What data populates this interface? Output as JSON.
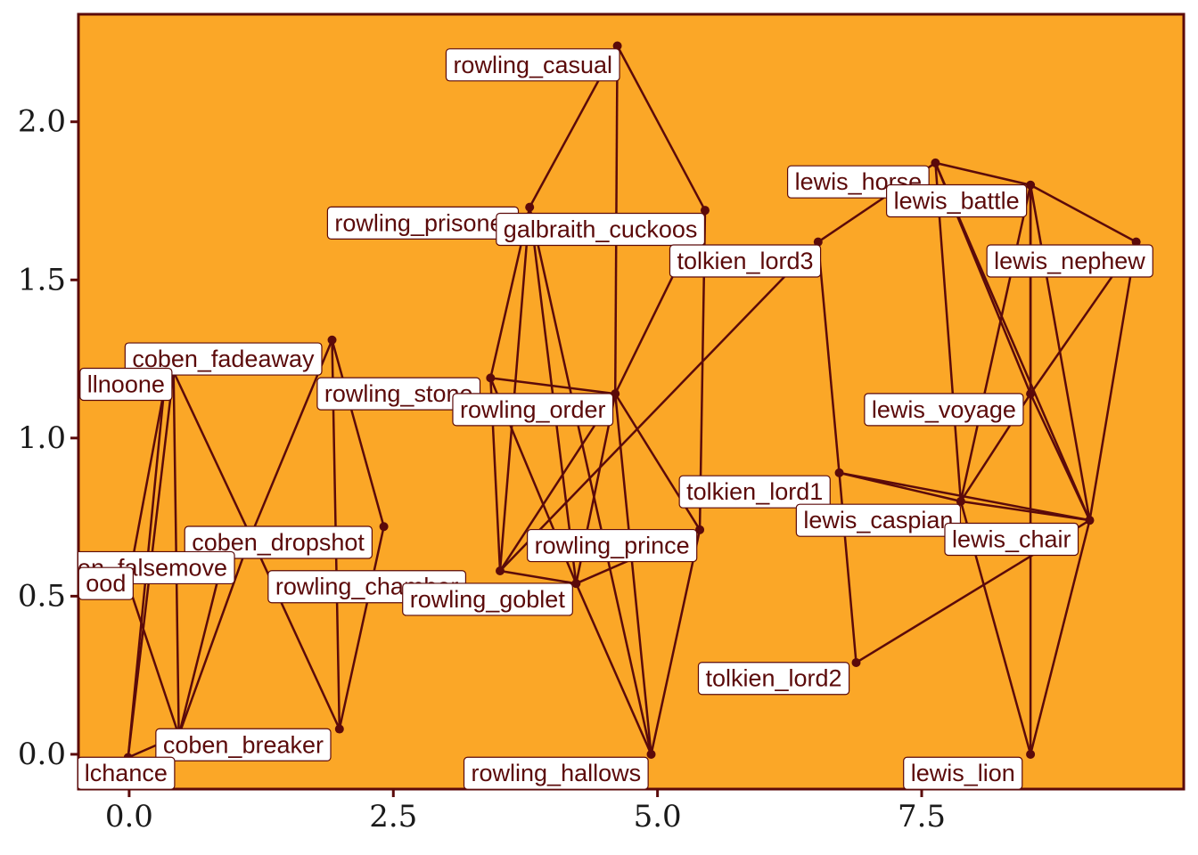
{
  "chart_data": {
    "type": "network",
    "title": "",
    "xlabel": "",
    "ylabel": "",
    "xlim": [
      -0.48,
      9.98
    ],
    "ylim": [
      -0.11,
      2.34
    ],
    "x_ticks": [
      0.0,
      2.5,
      5.0,
      7.5
    ],
    "x_tick_labels": [
      "0.0",
      "2.5",
      "5.0",
      "7.5"
    ],
    "y_ticks": [
      0.0,
      0.5,
      1.0,
      1.5,
      2.0
    ],
    "y_tick_labels": [
      "0.0",
      "0.5",
      "1.0",
      "1.5",
      "2.0"
    ],
    "colors": {
      "panel": "#FBA727",
      "ink": "#5B0A0A",
      "label_bg": "#FFFFFF"
    },
    "nodes": [
      {
        "id": "coben_fadeaway",
        "x": 0.42,
        "y": 1.21,
        "lx": 0.89,
        "ly": 1.25
      },
      {
        "id": "coben_nooone",
        "x": 0.33,
        "y": 1.15,
        "lx": -0.03,
        "ly": 1.17,
        "label": "llnoone"
      },
      {
        "id": "coben_dropshot",
        "x": 1.15,
        "y": 0.69,
        "lx": 1.41,
        "ly": 0.67
      },
      {
        "id": "coben_falsemove",
        "x": 0.86,
        "y": 0.58,
        "lx": 0.22,
        "ly": 0.59,
        "label": "en_falsemove"
      },
      {
        "id": "coben_wood",
        "x": -0.01,
        "y": 0.54,
        "lx": -0.22,
        "ly": 0.54,
        "label": "ood"
      },
      {
        "id": "coben_breaker",
        "x": 0.47,
        "y": 0.06,
        "lx": 1.08,
        "ly": 0.03
      },
      {
        "id": "coben_chance",
        "x": -0.01,
        "y": -0.01,
        "lx": -0.03,
        "ly": -0.06,
        "label": "lchance"
      },
      {
        "id": "rowling_stone",
        "x": 1.92,
        "y": 1.31,
        "lx": 2.55,
        "ly": 1.14
      },
      {
        "id": "rowling_chamber",
        "x": 2.41,
        "y": 0.72,
        "lx": 2.25,
        "ly": 0.53,
        "label": "rowling_chamber"
      },
      {
        "id": "rowling_goblet_a",
        "x": 1.99,
        "y": 0.08,
        "lx": null,
        "ly": null
      },
      {
        "id": "rowling_prisoner",
        "x": 3.79,
        "y": 1.73,
        "lx": 2.78,
        "ly": 1.68
      },
      {
        "id": "galbraith_cuckoos",
        "x": 5.45,
        "y": 1.72,
        "lx": 4.46,
        "ly": 1.66,
        "label": "galbraith_cuckoos"
      },
      {
        "id": "rowling_casual",
        "x": 4.62,
        "y": 2.24,
        "lx": 3.82,
        "ly": 2.18
      },
      {
        "id": "rowling_order",
        "x": 3.42,
        "y": 1.19,
        "lx": 3.82,
        "ly": 1.09
      },
      {
        "id": "rowling_hub",
        "x": 4.6,
        "y": 1.14,
        "lx": null,
        "ly": null
      },
      {
        "id": "rowling_goblet",
        "x": 3.51,
        "y": 0.58,
        "lx": 3.39,
        "ly": 0.49
      },
      {
        "id": "rowling_prince",
        "x": 4.23,
        "y": 0.54,
        "lx": 4.57,
        "ly": 0.66
      },
      {
        "id": "rowling_mid",
        "x": 5.4,
        "y": 0.71,
        "lx": null,
        "ly": null
      },
      {
        "id": "rowling_hallows",
        "x": 4.94,
        "y": 0.0,
        "lx": 4.04,
        "ly": -0.06
      },
      {
        "id": "tolkien_lord3",
        "x": 6.52,
        "y": 1.62,
        "lx": 5.83,
        "ly": 1.56
      },
      {
        "id": "tolkien_lord1",
        "x": 6.72,
        "y": 0.89,
        "lx": 5.92,
        "ly": 0.83
      },
      {
        "id": "tolkien_lord2",
        "x": 6.88,
        "y": 0.29,
        "lx": 6.1,
        "ly": 0.24
      },
      {
        "id": "lewis_horse",
        "x": 7.63,
        "y": 1.87,
        "lx": 6.9,
        "ly": 1.81
      },
      {
        "id": "lewis_battle",
        "x": 8.53,
        "y": 1.8,
        "lx": 7.83,
        "ly": 1.75
      },
      {
        "id": "lewis_nephew",
        "x": 9.53,
        "y": 1.62,
        "lx": 8.9,
        "ly": 1.56
      },
      {
        "id": "lewis_voyage",
        "x": 8.53,
        "y": 1.14,
        "lx": 7.71,
        "ly": 1.09
      },
      {
        "id": "lewis_caspian",
        "x": 7.87,
        "y": 0.8,
        "lx": 7.09,
        "ly": 0.74
      },
      {
        "id": "lewis_chair",
        "x": 9.09,
        "y": 0.74,
        "lx": 8.35,
        "ly": 0.68
      },
      {
        "id": "lewis_lion",
        "x": 8.53,
        "y": 0.0,
        "lx": 7.89,
        "ly": -0.06
      }
    ],
    "edges": [
      [
        "coben_nooone",
        "coben_wood"
      ],
      [
        "coben_nooone",
        "coben_chance"
      ],
      [
        "coben_fadeaway",
        "coben_breaker"
      ],
      [
        "coben_fadeaway",
        "coben_dropshot"
      ],
      [
        "coben_fadeaway",
        "coben_chance"
      ],
      [
        "coben_dropshot",
        "coben_breaker"
      ],
      [
        "coben_dropshot",
        "rowling_stone"
      ],
      [
        "coben_falsemove",
        "coben_breaker"
      ],
      [
        "coben_wood",
        "coben_breaker"
      ],
      [
        "coben_chance",
        "coben_breaker"
      ],
      [
        "rowling_stone",
        "rowling_chamber"
      ],
      [
        "rowling_stone",
        "rowling_goblet_a"
      ],
      [
        "rowling_chamber",
        "rowling_goblet_a"
      ],
      [
        "coben_dropshot",
        "rowling_goblet_a"
      ],
      [
        "rowling_casual",
        "rowling_prisoner"
      ],
      [
        "rowling_casual",
        "galbraith_cuckoos"
      ],
      [
        "rowling_casual",
        "rowling_hub"
      ],
      [
        "galbraith_cuckoos",
        "rowling_hub"
      ],
      [
        "rowling_prisoner",
        "rowling_order"
      ],
      [
        "rowling_prisoner",
        "rowling_goblet"
      ],
      [
        "rowling_prisoner",
        "rowling_prince"
      ],
      [
        "rowling_prisoner",
        "rowling_hallows"
      ],
      [
        "rowling_order",
        "rowling_hub"
      ],
      [
        "rowling_order",
        "rowling_goblet"
      ],
      [
        "rowling_order",
        "rowling_prince"
      ],
      [
        "rowling_hub",
        "rowling_goblet"
      ],
      [
        "rowling_hub",
        "rowling_prince"
      ],
      [
        "rowling_hub",
        "rowling_mid"
      ],
      [
        "rowling_hub",
        "rowling_hallows"
      ],
      [
        "rowling_goblet",
        "rowling_prince"
      ],
      [
        "rowling_goblet",
        "tolkien_lord3"
      ],
      [
        "rowling_prince",
        "rowling_hallows"
      ],
      [
        "rowling_prince",
        "rowling_mid"
      ],
      [
        "rowling_mid",
        "rowling_hallows"
      ],
      [
        "galbraith_cuckoos",
        "rowling_mid"
      ],
      [
        "tolkien_lord3",
        "lewis_horse"
      ],
      [
        "tolkien_lord3",
        "tolkien_lord1"
      ],
      [
        "tolkien_lord1",
        "tolkien_lord2"
      ],
      [
        "tolkien_lord1",
        "lewis_caspian"
      ],
      [
        "tolkien_lord1",
        "lewis_chair"
      ],
      [
        "tolkien_lord2",
        "lewis_chair"
      ],
      [
        "lewis_horse",
        "lewis_battle"
      ],
      [
        "lewis_horse",
        "lewis_voyage"
      ],
      [
        "lewis_horse",
        "lewis_caspian"
      ],
      [
        "lewis_horse",
        "lewis_chair"
      ],
      [
        "lewis_battle",
        "lewis_nephew"
      ],
      [
        "lewis_battle",
        "lewis_voyage"
      ],
      [
        "lewis_battle",
        "lewis_caspian"
      ],
      [
        "lewis_battle",
        "lewis_lion"
      ],
      [
        "lewis_battle",
        "lewis_chair"
      ],
      [
        "lewis_nephew",
        "lewis_voyage"
      ],
      [
        "lewis_nephew",
        "lewis_chair"
      ],
      [
        "lewis_voyage",
        "lewis_caspian"
      ],
      [
        "lewis_voyage",
        "lewis_chair"
      ],
      [
        "lewis_caspian",
        "lewis_lion"
      ],
      [
        "lewis_caspian",
        "lewis_chair"
      ],
      [
        "lewis_chair",
        "lewis_lion"
      ]
    ]
  }
}
